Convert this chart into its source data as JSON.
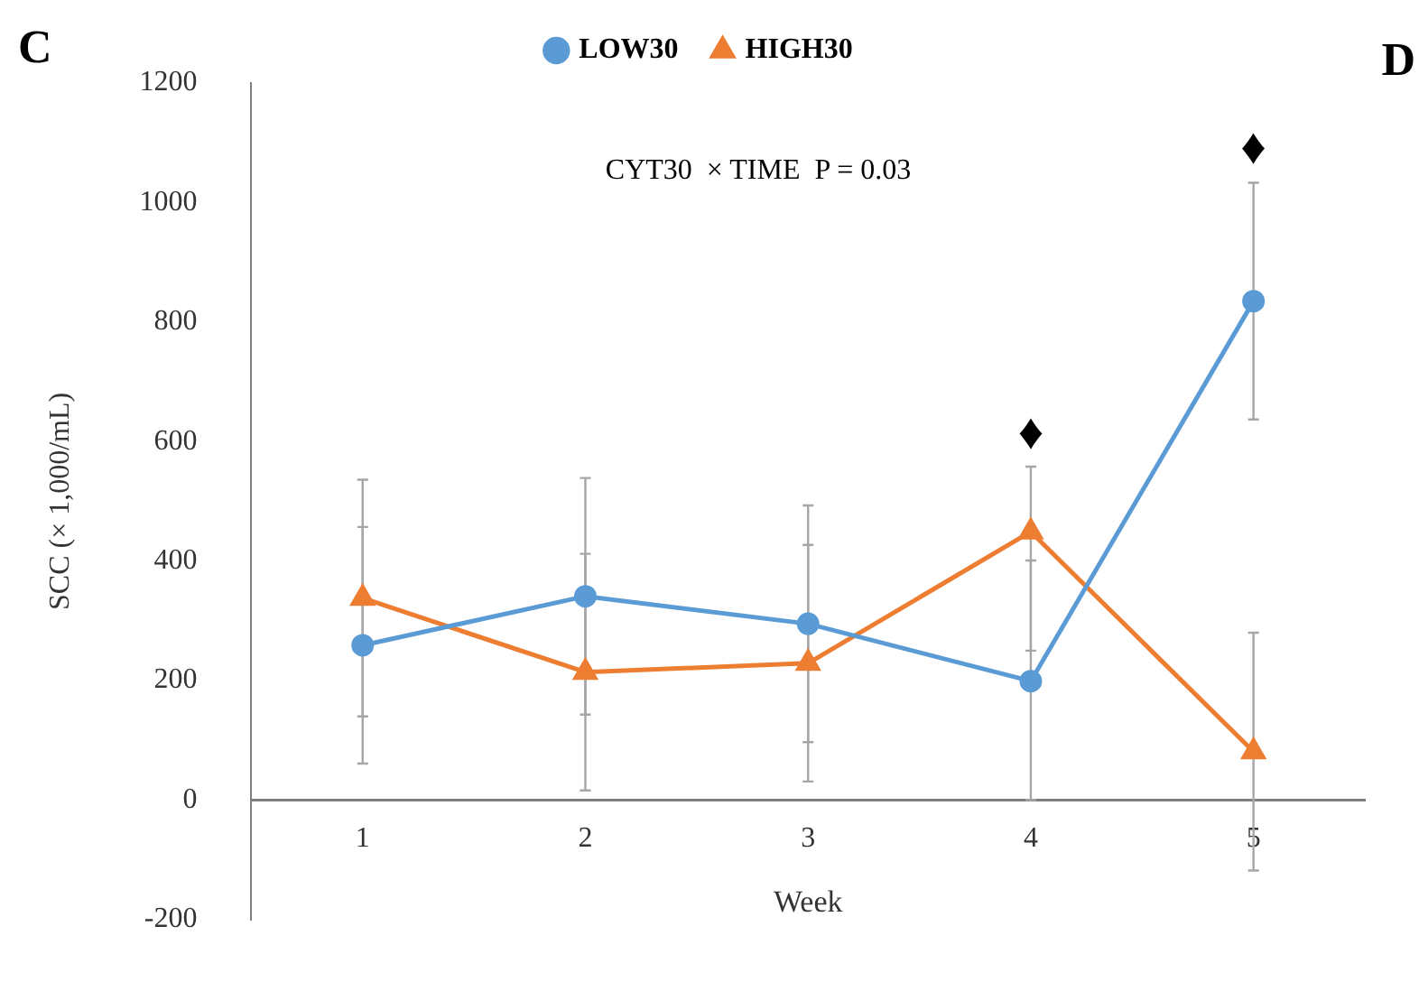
{
  "chart_data": {
    "type": "line",
    "xlabel": "Week",
    "ylabel": "SCC (× 1,000/mL)",
    "categories": [
      "1",
      "2",
      "3",
      "4",
      "5"
    ],
    "series": [
      {
        "name": "LOW30",
        "color": "#5b9bd5",
        "marker": "circle",
        "values": [
          259,
          341,
          295,
          199,
          835
        ],
        "errors": [
          198,
          198,
          198,
          [
            0,
            401
          ],
          198
        ]
      },
      {
        "name": "HIGH30",
        "color": "#ed7d31",
        "marker": "triangle",
        "values": [
          338,
          214,
          229,
          449,
          81
        ],
        "errors": [
          198,
          198,
          198,
          [
            250,
            558
          ],
          199
        ]
      }
    ],
    "ylim": [
      -200,
      1200
    ],
    "yticks": [
      -200,
      0,
      200,
      400,
      600,
      800,
      1000,
      1200
    ],
    "grid": false,
    "legend": "top",
    "line_style": "solid",
    "annotations": [
      "C",
      "D",
      "CYT30  × TIME  P = 0.03",
      "♦",
      "♦"
    ]
  }
}
